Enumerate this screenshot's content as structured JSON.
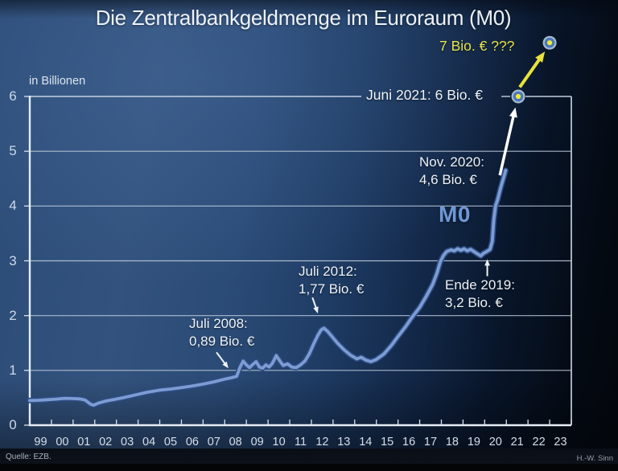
{
  "chart_data": {
    "type": "line",
    "title": "Die Zentralbankgeldmenge im Euroraum (M0)",
    "unit_label": "in Billionen",
    "x_tick_labels": [
      "99",
      "00",
      "01",
      "02",
      "03",
      "04",
      "05",
      "06",
      "07",
      "08",
      "09",
      "10",
      "11",
      "12",
      "13",
      "14",
      "15",
      "16",
      "17",
      "18",
      "19",
      "20",
      "21",
      "22",
      "23"
    ],
    "y_tick_labels": [
      "0",
      "1",
      "2",
      "3",
      "4",
      "5",
      "6"
    ],
    "x_range_years": [
      1999,
      2024
    ],
    "y_range": [
      0,
      6
    ],
    "grid": true,
    "legend_position": "none",
    "series": [
      {
        "name": "M0",
        "color": "#7d9cd3",
        "points": [
          [
            1999.0,
            0.45
          ],
          [
            1999.4,
            0.455
          ],
          [
            1999.8,
            0.465
          ],
          [
            2000.2,
            0.475
          ],
          [
            2000.6,
            0.49
          ],
          [
            2001.0,
            0.485
          ],
          [
            2001.3,
            0.48
          ],
          [
            2001.55,
            0.46
          ],
          [
            2001.8,
            0.385
          ],
          [
            2001.95,
            0.365
          ],
          [
            2002.15,
            0.4
          ],
          [
            2002.5,
            0.44
          ],
          [
            2002.9,
            0.47
          ],
          [
            2003.3,
            0.5
          ],
          [
            2003.8,
            0.545
          ],
          [
            2004.4,
            0.6
          ],
          [
            2005.0,
            0.64
          ],
          [
            2005.5,
            0.66
          ],
          [
            2006.0,
            0.685
          ],
          [
            2006.5,
            0.715
          ],
          [
            2007.0,
            0.75
          ],
          [
            2007.5,
            0.79
          ],
          [
            2008.0,
            0.84
          ],
          [
            2008.3,
            0.865
          ],
          [
            2008.55,
            0.89
          ],
          [
            2008.7,
            1.05
          ],
          [
            2008.85,
            1.17
          ],
          [
            2009.0,
            1.1
          ],
          [
            2009.15,
            1.05
          ],
          [
            2009.3,
            1.11
          ],
          [
            2009.45,
            1.16
          ],
          [
            2009.6,
            1.06
          ],
          [
            2009.75,
            1.04
          ],
          [
            2009.9,
            1.1
          ],
          [
            2010.05,
            1.06
          ],
          [
            2010.2,
            1.13
          ],
          [
            2010.38,
            1.27
          ],
          [
            2010.55,
            1.17
          ],
          [
            2010.7,
            1.09
          ],
          [
            2010.9,
            1.12
          ],
          [
            2011.1,
            1.06
          ],
          [
            2011.3,
            1.05
          ],
          [
            2011.5,
            1.1
          ],
          [
            2011.7,
            1.17
          ],
          [
            2011.9,
            1.3
          ],
          [
            2012.1,
            1.48
          ],
          [
            2012.3,
            1.64
          ],
          [
            2012.45,
            1.74
          ],
          [
            2012.58,
            1.77
          ],
          [
            2012.75,
            1.71
          ],
          [
            2012.95,
            1.62
          ],
          [
            2013.2,
            1.5
          ],
          [
            2013.5,
            1.38
          ],
          [
            2013.8,
            1.28
          ],
          [
            2014.1,
            1.21
          ],
          [
            2014.3,
            1.24
          ],
          [
            2014.5,
            1.19
          ],
          [
            2014.75,
            1.16
          ],
          [
            2015.0,
            1.2
          ],
          [
            2015.35,
            1.3
          ],
          [
            2015.7,
            1.46
          ],
          [
            2016.0,
            1.62
          ],
          [
            2016.35,
            1.8
          ],
          [
            2016.65,
            1.97
          ],
          [
            2017.0,
            2.15
          ],
          [
            2017.3,
            2.35
          ],
          [
            2017.6,
            2.57
          ],
          [
            2017.8,
            2.78
          ],
          [
            2017.95,
            2.98
          ],
          [
            2018.1,
            3.1
          ],
          [
            2018.25,
            3.17
          ],
          [
            2018.45,
            3.2
          ],
          [
            2018.6,
            3.18
          ],
          [
            2018.75,
            3.22
          ],
          [
            2018.9,
            3.19
          ],
          [
            2019.05,
            3.22
          ],
          [
            2019.2,
            3.18
          ],
          [
            2019.35,
            3.21
          ],
          [
            2019.5,
            3.17
          ],
          [
            2019.65,
            3.13
          ],
          [
            2019.82,
            3.09
          ],
          [
            2019.95,
            3.14
          ],
          [
            2020.1,
            3.17
          ],
          [
            2020.25,
            3.21
          ],
          [
            2020.35,
            3.35
          ],
          [
            2020.42,
            3.75
          ],
          [
            2020.5,
            4.0
          ],
          [
            2020.6,
            4.12
          ],
          [
            2020.75,
            4.35
          ],
          [
            2020.9,
            4.55
          ],
          [
            2020.97,
            4.65
          ]
        ]
      }
    ],
    "markers": [
      {
        "label": "Juni 2021: 6 Bio. €",
        "year": 2021.55,
        "value": 6.0
      },
      {
        "label": "7 Bio. € ???",
        "year": 2023.0,
        "value": 6.98
      }
    ],
    "arrows": [
      {
        "name": "arrow-juli-2008",
        "from": [
          2007.62,
          1.33
        ],
        "to": [
          2008.17,
          1.04
        ],
        "color": "#eef3f8",
        "width": 2,
        "head": 8
      },
      {
        "name": "arrow-juli-2012",
        "from": [
          2012.05,
          2.33
        ],
        "to": [
          2012.3,
          2.04
        ],
        "color": "#eef3f8",
        "width": 2,
        "head": 8
      },
      {
        "name": "arrow-ende-2019",
        "from": [
          2020.12,
          2.72
        ],
        "to": [
          2020.12,
          3.03
        ],
        "color": "#eef3f8",
        "width": 2,
        "head": 8
      },
      {
        "name": "arrow-to-juni-2021",
        "from": [
          2020.7,
          4.56
        ],
        "to": [
          2021.42,
          5.8
        ],
        "color": "#ffffff",
        "width": 3.5,
        "head": 12
      },
      {
        "name": "arrow-to-7-bio",
        "from": [
          2021.62,
          6.17
        ],
        "to": [
          2022.78,
          6.82
        ],
        "color": "#e8e23c",
        "width": 4,
        "head": 13
      }
    ],
    "annotations": {
      "juli2008": {
        "line1": "Juli 2008:",
        "line2": "0,89 Bio. €"
      },
      "juli2012": {
        "line1": "Juli 2012:",
        "line2": "1,77 Bio. €"
      },
      "ende2019": {
        "line1": "Ende 2019:",
        "line2": "3,2 Bio. €"
      },
      "nov2020": {
        "line1": "Nov. 2020:",
        "line2": "4,6 Bio. €"
      },
      "juni2021": {
        "text": "Juni 2021: 6 Bio. €"
      },
      "seven_bio": {
        "text": "7 Bio. € ???"
      },
      "series_label": "M0"
    }
  },
  "footer": {
    "source": "Quelle: EZB.",
    "credit": "H.-W. Sinn"
  },
  "colors": {
    "line": "#7d9cd3",
    "line_outline": "#2d4d84",
    "accent_yellow": "#e8e23c",
    "marker_center": "#f1e93c",
    "marker_ring": "#4a78b5",
    "marker_halo": "#a8bad0",
    "gridline": "#b9c7da",
    "plot_border": "#e6edf5"
  }
}
